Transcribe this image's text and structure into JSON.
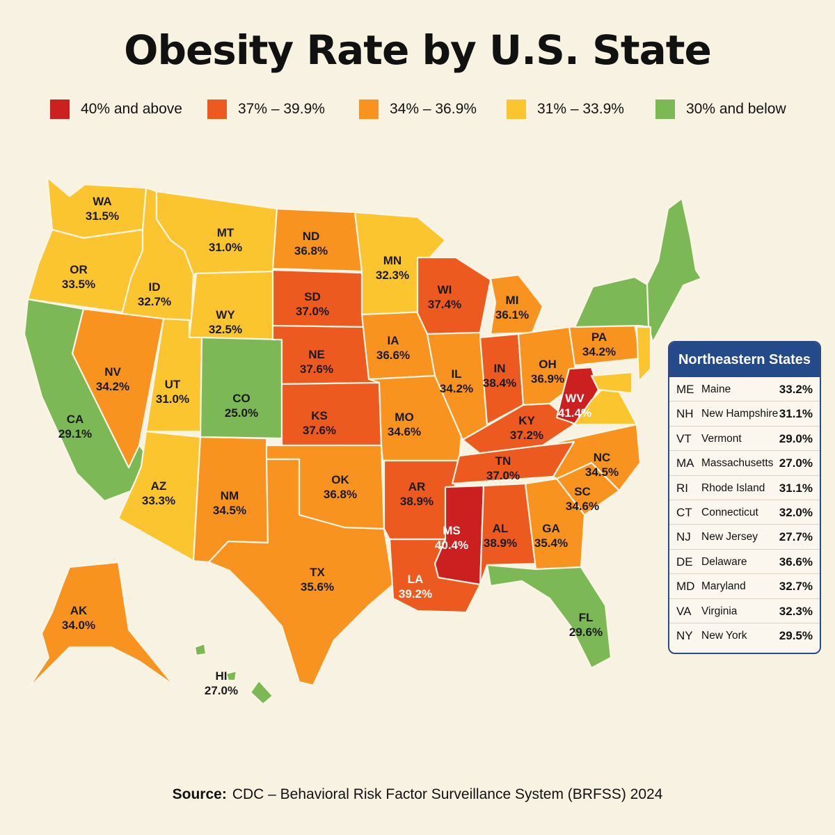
{
  "title": "Obesity Rate by U.S. State",
  "legend": [
    {
      "label": "40% and above",
      "color": "#cc1f1f"
    },
    {
      "label": "37% – 39.9%",
      "color": "#ec5a20"
    },
    {
      "label": "34% – 36.9%",
      "color": "#f7931e"
    },
    {
      "label": "31% – 33.9%",
      "color": "#fbc52f"
    },
    {
      "label": "30% and below",
      "color": "#7cb956"
    }
  ],
  "states": [
    {
      "abbr": "WA",
      "value": "31.5%",
      "rate": 31.5
    },
    {
      "abbr": "OR",
      "value": "33.5%",
      "rate": 33.5
    },
    {
      "abbr": "CA",
      "value": "29.1%",
      "rate": 29.1
    },
    {
      "abbr": "ID",
      "value": "32.7%",
      "rate": 32.7
    },
    {
      "abbr": "NV",
      "value": "34.2%",
      "rate": 34.2
    },
    {
      "abbr": "MT",
      "value": "31.0%",
      "rate": 31.0
    },
    {
      "abbr": "WY",
      "value": "32.5%",
      "rate": 32.5
    },
    {
      "abbr": "UT",
      "value": "31.0%",
      "rate": 31.0
    },
    {
      "abbr": "CO",
      "value": "25.0%",
      "rate": 25.0
    },
    {
      "abbr": "AZ",
      "value": "33.3%",
      "rate": 33.3
    },
    {
      "abbr": "NM",
      "value": "34.5%",
      "rate": 34.5
    },
    {
      "abbr": "ND",
      "value": "36.8%",
      "rate": 36.8
    },
    {
      "abbr": "SD",
      "value": "37.0%",
      "rate": 37.0
    },
    {
      "abbr": "NE",
      "value": "37.6%",
      "rate": 37.6
    },
    {
      "abbr": "KS",
      "value": "37.6%",
      "rate": 37.6
    },
    {
      "abbr": "OK",
      "value": "36.8%",
      "rate": 36.8
    },
    {
      "abbr": "TX",
      "value": "35.6%",
      "rate": 35.6
    },
    {
      "abbr": "MN",
      "value": "32.3%",
      "rate": 32.3
    },
    {
      "abbr": "IA",
      "value": "36.6%",
      "rate": 36.6
    },
    {
      "abbr": "MO",
      "value": "34.6%",
      "rate": 34.6
    },
    {
      "abbr": "AR",
      "value": "38.9%",
      "rate": 38.9
    },
    {
      "abbr": "LA",
      "value": "39.2%",
      "rate": 39.2
    },
    {
      "abbr": "WI",
      "value": "37.4%",
      "rate": 37.4
    },
    {
      "abbr": "IL",
      "value": "34.2%",
      "rate": 34.2
    },
    {
      "abbr": "MI",
      "value": "36.1%",
      "rate": 36.1
    },
    {
      "abbr": "IN",
      "value": "38.4%",
      "rate": 38.4
    },
    {
      "abbr": "OH",
      "value": "36.9%",
      "rate": 36.9
    },
    {
      "abbr": "KY",
      "value": "37.2%",
      "rate": 37.2
    },
    {
      "abbr": "TN",
      "value": "37.0%",
      "rate": 37.0
    },
    {
      "abbr": "MS",
      "value": "40.4%",
      "rate": 40.4
    },
    {
      "abbr": "AL",
      "value": "38.9%",
      "rate": 38.9
    },
    {
      "abbr": "GA",
      "value": "35.4%",
      "rate": 35.4
    },
    {
      "abbr": "FL",
      "value": "29.6%",
      "rate": 29.6
    },
    {
      "abbr": "SC",
      "value": "34.6%",
      "rate": 34.6
    },
    {
      "abbr": "NC",
      "value": "34.5%",
      "rate": 34.5
    },
    {
      "abbr": "WV",
      "value": "41.4%",
      "rate": 41.4
    },
    {
      "abbr": "PA",
      "value": "34.2%",
      "rate": 34.2
    },
    {
      "abbr": "AK",
      "value": "34.0%",
      "rate": 34.0
    },
    {
      "abbr": "HI",
      "value": "27.0%",
      "rate": 27.0
    }
  ],
  "northeast": {
    "title": "Northeastern States",
    "rows": [
      {
        "abbr": "ME",
        "name": "Maine",
        "value": "33.2%"
      },
      {
        "abbr": "NH",
        "name": "New Hampshire",
        "value": "31.1%"
      },
      {
        "abbr": "VT",
        "name": "Vermont",
        "value": "29.0%"
      },
      {
        "abbr": "MA",
        "name": "Massachusetts",
        "value": "27.0%"
      },
      {
        "abbr": "RI",
        "name": "Rhode Island",
        "value": "31.1%"
      },
      {
        "abbr": "CT",
        "name": "Connecticut",
        "value": "32.0%"
      },
      {
        "abbr": "NJ",
        "name": "New Jersey",
        "value": "27.7%"
      },
      {
        "abbr": "DE",
        "name": "Delaware",
        "value": "36.6%"
      },
      {
        "abbr": "MD",
        "name": "Maryland",
        "value": "32.7%"
      },
      {
        "abbr": "VA",
        "name": "Virginia",
        "value": "32.3%"
      },
      {
        "abbr": "NY",
        "name": "New York",
        "value": "29.5%"
      }
    ]
  },
  "source": {
    "label": "Source:",
    "text": "CDC – Behavioral Risk Factor Surveillance System (BRFSS) 2024"
  }
}
